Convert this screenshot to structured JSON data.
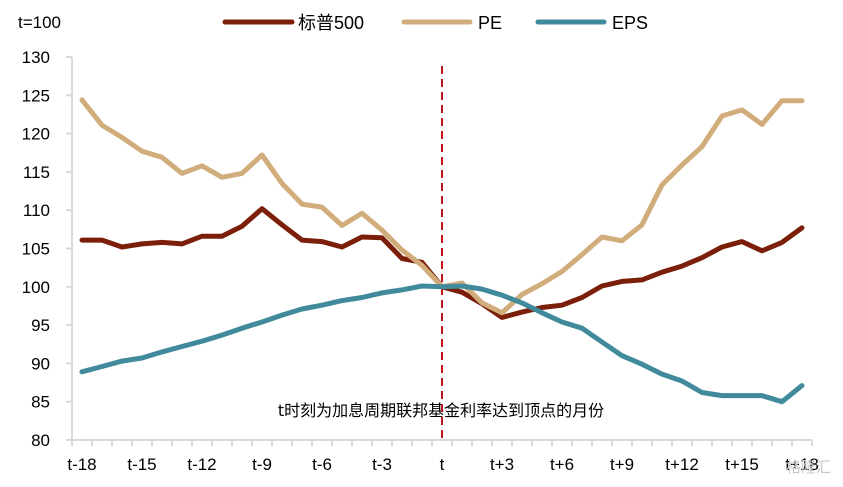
{
  "chart_data": {
    "type": "line",
    "title": "",
    "unit_label": "t=100",
    "xlabel": "",
    "ylabel": "",
    "ylim": [
      80,
      130
    ],
    "yticks": [
      80,
      85,
      90,
      95,
      100,
      105,
      110,
      115,
      120,
      125,
      130
    ],
    "grid": false,
    "legend": {
      "placement": "top-center",
      "entries": [
        "标普500",
        "PE",
        "EPS"
      ]
    },
    "x": [
      "t-18",
      "t-17",
      "t-16",
      "t-15",
      "t-14",
      "t-13",
      "t-12",
      "t-11",
      "t-10",
      "t-9",
      "t-8",
      "t-7",
      "t-6",
      "t-5",
      "t-4",
      "t-3",
      "t-2",
      "t-1",
      "t",
      "t+1",
      "t+2",
      "t+3",
      "t+4",
      "t+5",
      "t+6",
      "t+7",
      "t+8",
      "t+9",
      "t+10",
      "t+11",
      "t+12",
      "t+13",
      "t+14",
      "t+15",
      "t+16",
      "t+17",
      "t+18"
    ],
    "xtick_labels": [
      "t-18",
      "t-15",
      "t-12",
      "t-9",
      "t-6",
      "t-3",
      "t",
      "t+3",
      "t+6",
      "t+9",
      "t+12",
      "t+15",
      "t+18"
    ],
    "series": [
      {
        "name": "标普500",
        "color": "#7B1F0A",
        "values": [
          106.1,
          106.1,
          105.2,
          105.6,
          105.8,
          105.6,
          106.6,
          106.6,
          107.9,
          110.2,
          108.1,
          106.1,
          105.9,
          105.2,
          106.5,
          106.4,
          103.7,
          103.2,
          100.0,
          99.3,
          97.8,
          96.0,
          96.7,
          97.3,
          97.6,
          98.6,
          100.1,
          100.7,
          100.9,
          101.9,
          102.7,
          103.8,
          105.2,
          105.9,
          104.7,
          105.8,
          107.7
        ]
      },
      {
        "name": "PE",
        "color": "#D2AD7C",
        "values": [
          124.4,
          121.1,
          119.5,
          117.7,
          116.9,
          114.8,
          115.8,
          114.3,
          114.8,
          117.2,
          113.5,
          110.8,
          110.4,
          108.0,
          109.6,
          107.4,
          104.8,
          102.8,
          100.0,
          100.5,
          97.9,
          96.6,
          99.0,
          100.4,
          102.0,
          104.2,
          106.5,
          106.0,
          108.1,
          113.3,
          115.9,
          118.3,
          122.3,
          123.1,
          121.2,
          124.3,
          124.3
        ]
      },
      {
        "name": "EPS",
        "color": "#418A9B",
        "values": [
          88.9,
          89.6,
          90.3,
          90.7,
          91.5,
          92.2,
          92.9,
          93.7,
          94.6,
          95.4,
          96.3,
          97.1,
          97.6,
          98.2,
          98.6,
          99.2,
          99.6,
          100.1,
          100.0,
          100.1,
          99.7,
          98.9,
          97.9,
          96.6,
          95.4,
          94.6,
          92.8,
          91.0,
          89.9,
          88.6,
          87.7,
          86.2,
          85.8,
          85.8,
          85.8,
          85.0,
          87.1
        ]
      }
    ],
    "reference_line": {
      "x": "t",
      "style": "dashed",
      "color": "#C0141C"
    },
    "annotation": "t时刻为加息周期联邦基金利率达到顶点的月份"
  },
  "watermark": "格隆汇"
}
